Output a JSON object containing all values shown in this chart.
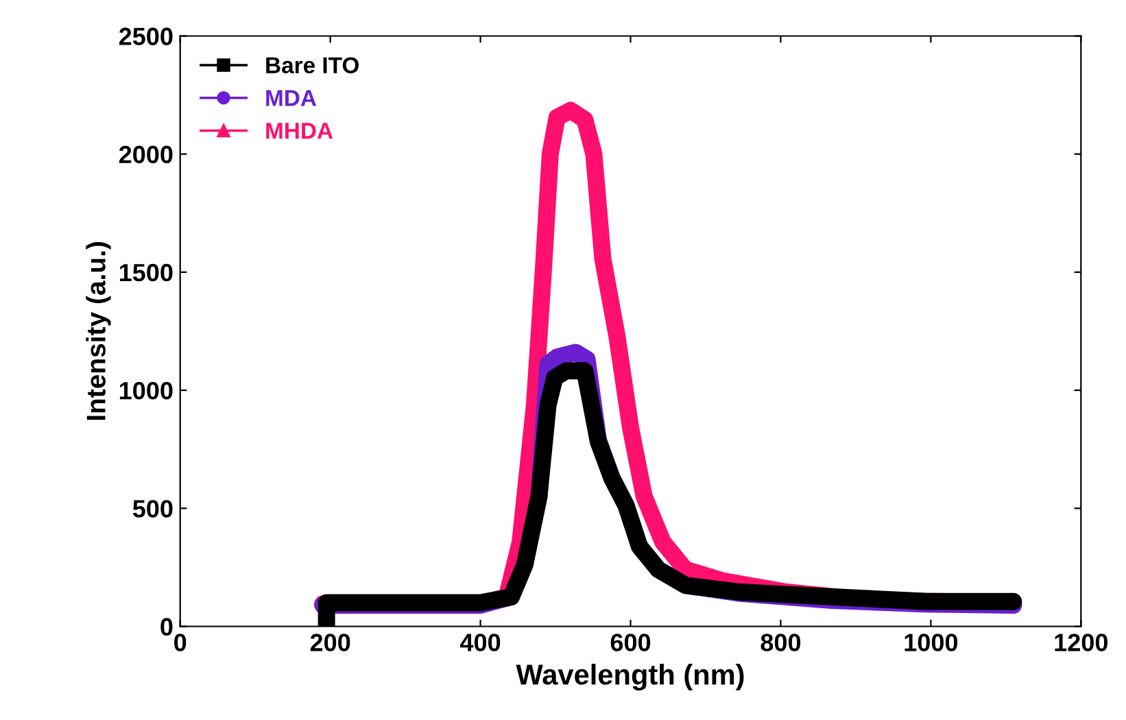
{
  "chart_data": {
    "type": "line",
    "xlabel": "Wavelength (nm)",
    "ylabel": "Intensity (a.u.)",
    "xlim": [
      0,
      1200
    ],
    "xticks": [
      0,
      200,
      400,
      600,
      800,
      1000,
      1200
    ],
    "ylim": [
      0,
      2500
    ],
    "yticks": [
      0,
      500,
      1000,
      1500,
      2000,
      2500
    ],
    "grid": false,
    "legend": "top left",
    "series": [
      {
        "name": "MHDA",
        "color": "#ff0f6e",
        "marker": "triangle",
        "x": [
          190,
          400,
          435,
          453,
          472,
          484,
          493,
          502,
          520,
          539,
          551,
          563,
          582,
          600,
          618,
          643,
          673,
          722,
          808,
          899,
          991,
          1110
        ],
        "values": [
          95,
          95,
          125,
          357,
          937,
          1517,
          2001,
          2155,
          2185,
          2146,
          2001,
          1556,
          1227,
          841,
          551,
          357,
          241,
          193,
          145,
          116,
          106,
          100
        ]
      },
      {
        "name": "MDA",
        "color": "#6a1fd0",
        "marker": "circle",
        "x": [
          190,
          300,
          400,
          441,
          459,
          478,
          490,
          502,
          527,
          542,
          557,
          575,
          594,
          612,
          637,
          673,
          747,
          869,
          991,
          1110
        ],
        "values": [
          90,
          90,
          90,
          125,
          261,
          551,
          1111,
          1140,
          1160,
          1131,
          790,
          630,
          512,
          338,
          241,
          174,
          140,
          110,
          95,
          90
        ]
      },
      {
        "name": "Bare ITO",
        "color": "#000000",
        "marker": "square",
        "x": [
          195,
          195,
          300,
          400,
          441,
          459,
          478,
          490,
          499,
          514,
          539,
          557,
          575,
          594,
          612,
          637,
          673,
          747,
          869,
          991,
          1110
        ],
        "values": [
          0,
          100,
          100,
          100,
          125,
          261,
          551,
          937,
          1053,
          1082,
          1082,
          783,
          628,
          512,
          338,
          241,
          174,
          145,
          125,
          106,
          105
        ]
      }
    ]
  }
}
